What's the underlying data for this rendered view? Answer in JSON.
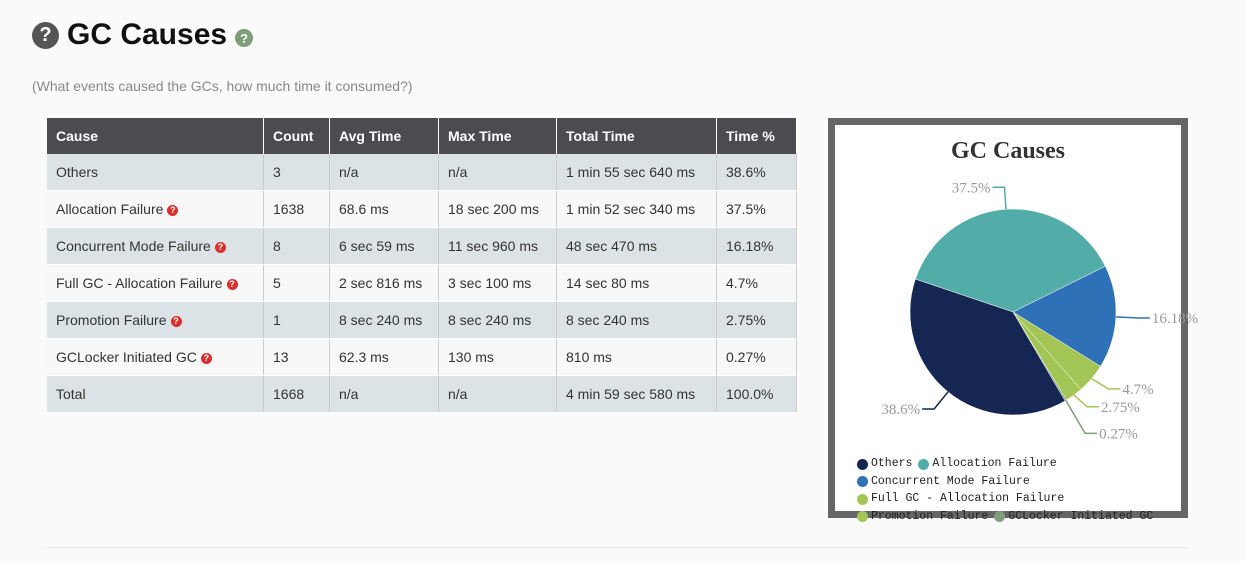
{
  "header": {
    "title": "GC Causes",
    "subtitle": "(What events caused the GCs, how much time it consumed?)",
    "help_icon": "question-circle-icon"
  },
  "table": {
    "columns": [
      "Cause",
      "Count",
      "Avg Time",
      "Max Time",
      "Total Time",
      "Time %"
    ],
    "rows": [
      {
        "cause": "Others",
        "help": false,
        "count": "3",
        "avg": "n/a",
        "max": "n/a",
        "total": "1 min 55 sec 640 ms",
        "pct": "38.6%"
      },
      {
        "cause": "Allocation Failure",
        "help": true,
        "count": "1638",
        "avg": "68.6 ms",
        "max": "18 sec 200 ms",
        "total": "1 min 52 sec 340 ms",
        "pct": "37.5%"
      },
      {
        "cause": "Concurrent Mode Failure",
        "help": true,
        "count": "8",
        "avg": "6 sec 59 ms",
        "max": "11 sec 960 ms",
        "total": "48 sec 470 ms",
        "pct": "16.18%"
      },
      {
        "cause": "Full GC - Allocation Failure",
        "help": true,
        "count": "5",
        "avg": "2 sec 816 ms",
        "max": "3 sec 100 ms",
        "total": "14 sec 80 ms",
        "pct": "4.7%"
      },
      {
        "cause": "Promotion Failure",
        "help": true,
        "count": "1",
        "avg": "8 sec 240 ms",
        "max": "8 sec 240 ms",
        "total": "8 sec 240 ms",
        "pct": "2.75%"
      },
      {
        "cause": "GCLocker Initiated GC",
        "help": true,
        "count": "13",
        "avg": "62.3 ms",
        "max": "130 ms",
        "total": "810 ms",
        "pct": "0.27%"
      },
      {
        "cause": "Total",
        "help": false,
        "count": "1668",
        "avg": "n/a",
        "max": "n/a",
        "total": "4 min 59 sec 580 ms",
        "pct": "100.0%"
      }
    ]
  },
  "chart_data": {
    "type": "pie",
    "title": "GC Causes",
    "legend": "bottom",
    "slices": [
      {
        "name": "Allocation Failure",
        "value": 37.5,
        "label": "37.5%",
        "color": "#52ada8"
      },
      {
        "name": "Concurrent Mode Failure",
        "value": 16.18,
        "label": "16.18%",
        "color": "#2e71b6"
      },
      {
        "name": "Full GC - Allocation Failure",
        "value": 4.7,
        "label": "4.7%",
        "color": "#a3c556"
      },
      {
        "name": "Promotion Failure",
        "value": 2.75,
        "label": "2.75%",
        "color": "#a3c556"
      },
      {
        "name": "GCLocker Initiated GC",
        "value": 0.27,
        "label": "0.27%",
        "color": "#7fa07a"
      },
      {
        "name": "Others",
        "value": 38.6,
        "label": "38.6%",
        "color": "#152653"
      }
    ],
    "legend_order": [
      "Others",
      "Allocation Failure",
      "Concurrent Mode Failure",
      "Full GC - Allocation Failure",
      "Promotion Failure",
      "GCLocker Initiated GC"
    ]
  }
}
